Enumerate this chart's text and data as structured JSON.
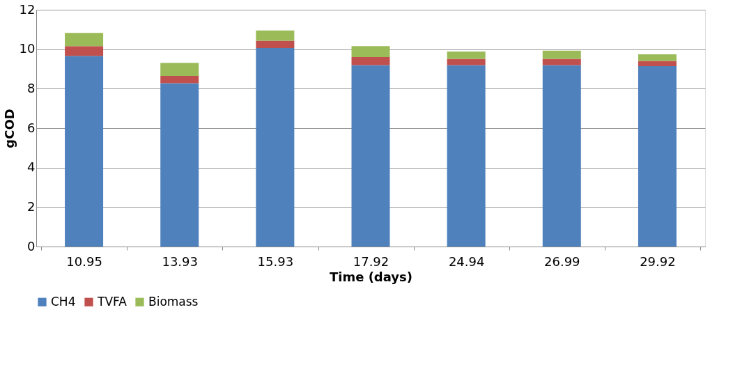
{
  "chart_data": {
    "type": "bar",
    "stacked": true,
    "xlabel": "Time (days)",
    "ylabel": "gCOD",
    "categories": [
      "10.95",
      "13.93",
      "15.93",
      "17.92",
      "24.94",
      "26.99",
      "29.92"
    ],
    "series": [
      {
        "name": "CH4",
        "color": "#4f81bd",
        "values": [
          9.66,
          8.28,
          10.06,
          9.19,
          9.19,
          9.19,
          9.14
        ]
      },
      {
        "name": "TVFA",
        "color": "#c0504d",
        "values": [
          0.5,
          0.37,
          0.37,
          0.41,
          0.32,
          0.32,
          0.27
        ]
      },
      {
        "name": "Biomass",
        "color": "#9bbb59",
        "values": [
          0.67,
          0.66,
          0.52,
          0.56,
          0.37,
          0.42,
          0.33
        ]
      }
    ],
    "ylim": [
      0,
      12
    ],
    "yticks": [
      0,
      2,
      4,
      6,
      8,
      10,
      12
    ],
    "grid": "y",
    "legend": "bottom"
  }
}
